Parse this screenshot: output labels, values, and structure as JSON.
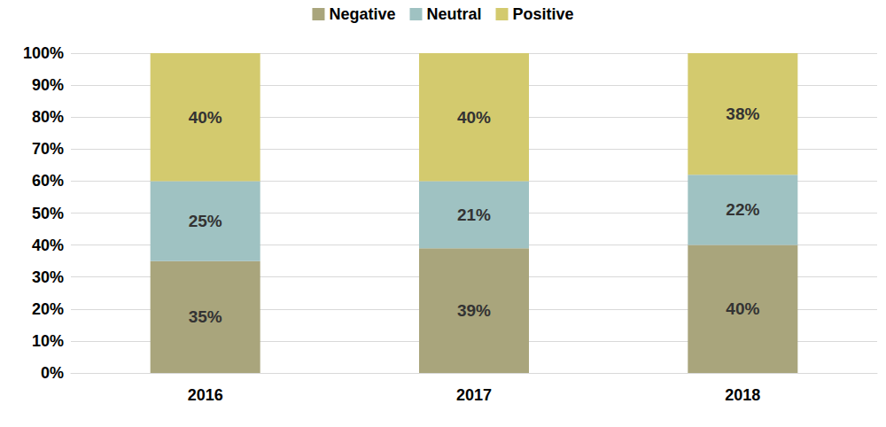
{
  "chart_data": {
    "type": "bar",
    "stacked": true,
    "data_labels": true,
    "grid": true,
    "legend": "top",
    "categories": [
      "2016",
      "2017",
      "2018"
    ],
    "series": [
      {
        "name": "Negative",
        "color": "#a9a57c",
        "values": [
          35,
          39,
          40
        ],
        "value_labels": [
          "35%",
          "39%",
          "40%"
        ]
      },
      {
        "name": "Neutral",
        "color": "#9fc2c2",
        "values": [
          25,
          21,
          22
        ],
        "value_labels": [
          "25%",
          "21%",
          "22%"
        ]
      },
      {
        "name": "Positive",
        "color": "#d3ca6e",
        "values": [
          40,
          40,
          38
        ],
        "value_labels": [
          "40%",
          "40%",
          "38%"
        ]
      }
    ],
    "ylim": [
      0,
      100
    ],
    "yticks": [
      {
        "value": 0,
        "label": "0%"
      },
      {
        "value": 10,
        "label": "10%"
      },
      {
        "value": 20,
        "label": "20%"
      },
      {
        "value": 30,
        "label": "30%"
      },
      {
        "value": 40,
        "label": "40%"
      },
      {
        "value": 50,
        "label": "50%"
      },
      {
        "value": 60,
        "label": "60%"
      },
      {
        "value": 70,
        "label": "70%"
      },
      {
        "value": 80,
        "label": "80%"
      },
      {
        "value": 90,
        "label": "90%"
      },
      {
        "value": 100,
        "label": "100%"
      }
    ]
  }
}
